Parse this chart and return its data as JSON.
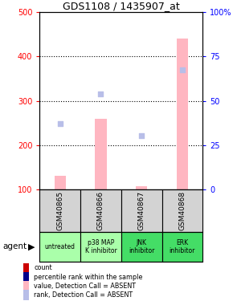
{
  "title": "GDS1108 / 1435907_at",
  "samples": [
    "GSM40865",
    "GSM40866",
    "GSM40867",
    "GSM40868"
  ],
  "agents": [
    "untreated",
    "p38 MAP\nK inhibitor",
    "JNK\ninhibitor",
    "ERK\ninhibitor"
  ],
  "agent_colors": [
    "#aaffaa",
    "#aaffaa",
    "#44dd66",
    "#44dd66"
  ],
  "bar_values_absent": [
    132,
    260,
    107,
    440
  ],
  "rank_absent": [
    248,
    315,
    222,
    370
  ],
  "ylim_left": [
    100,
    500
  ],
  "ylim_right": [
    0,
    100
  ],
  "yticks_left": [
    100,
    200,
    300,
    400,
    500
  ],
  "yticks_right": [
    0,
    25,
    50,
    75,
    100
  ],
  "bar_color": "#FFB6C1",
  "rank_absent_color": "#B8BEE8",
  "count_color": "#CC0000",
  "rank_color": "#00008B",
  "legend_items": [
    {
      "label": "count",
      "color": "#CC0000"
    },
    {
      "label": "percentile rank within the sample",
      "color": "#00008B"
    },
    {
      "label": "value, Detection Call = ABSENT",
      "color": "#FFB6C1"
    },
    {
      "label": "rank, Detection Call = ABSENT",
      "color": "#B8BEE8"
    }
  ],
  "grid_yticks": [
    200,
    300,
    400
  ],
  "sample_box_color": "#D3D3D3",
  "bar_width": 0.28
}
